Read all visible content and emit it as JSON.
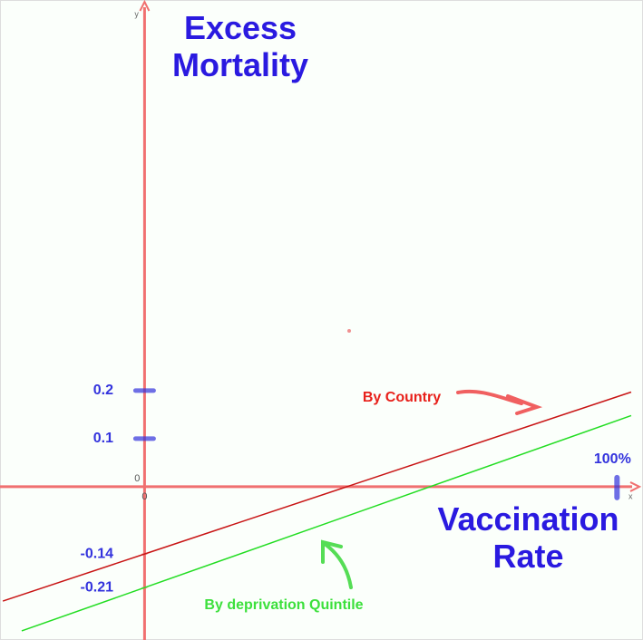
{
  "chart_data": {
    "type": "line",
    "y_label": "Excess Mortality",
    "x_label": "Vaccination Rate",
    "x_axis_name": "x",
    "y_axis_name": "y",
    "series": [
      {
        "name": "By Country",
        "color": "#c81414",
        "x": [
          -30,
          0,
          103
        ],
        "values": [
          -0.238,
          -0.14,
          0.197
        ]
      },
      {
        "name": "By deprivation Quintile",
        "color": "#22dd22",
        "x": [
          -26,
          0,
          103
        ],
        "values": [
          -0.3,
          -0.21,
          0.148
        ]
      }
    ],
    "annotation_colors": [
      "#e8201a",
      "#3ce03c"
    ],
    "xlim": [
      -30.6,
      105.5
    ],
    "ylim": [
      -0.319,
      1.013
    ],
    "xticks": [
      0,
      {
        "value": 100,
        "label": "100%"
      }
    ],
    "yticks": [
      -0.21,
      -0.14,
      0,
      0.1,
      0.2
    ],
    "axis_color": "#f07070",
    "tick_color": "#3333dd"
  }
}
